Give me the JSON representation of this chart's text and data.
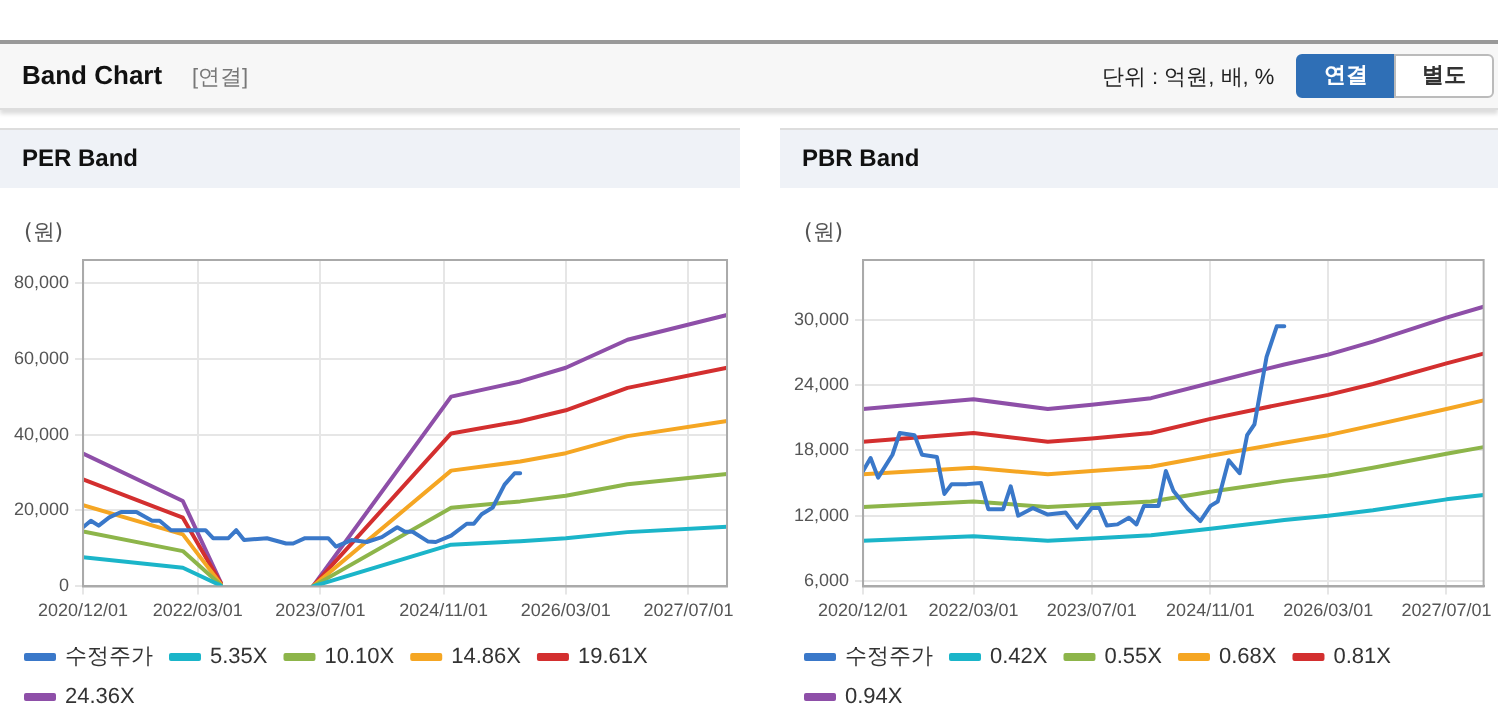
{
  "chart_data": [
    {
      "type": "other",
      "title": "Band Chart",
      "annotations": [
        "[연결]",
        "단위 : 억원, 배, %",
        "연결",
        "별도"
      ]
    },
    {
      "type": "line",
      "title": "PER Band",
      "ylabel": "(원)",
      "x": [
        "2020-12-01",
        "2022-01-01",
        "2022-06-01",
        "2023-01-01",
        "2023-06-01",
        "2024-12-01",
        "2025-09-01",
        "2026-03-01",
        "2026-11-01",
        "2027-12-01"
      ],
      "series": [
        {
          "name": "수정주가",
          "color": "#3a78c9",
          "x": [
            "2020-12-01",
            "2021-01-01",
            "2021-02-01",
            "2021-03-15",
            "2021-05-01",
            "2021-07-01",
            "2021-09-01",
            "2021-10-01",
            "2021-11-15",
            "2022-04-01",
            "2022-05-01",
            "2022-07-01",
            "2022-08-01",
            "2022-09-01",
            "2022-12-01",
            "2023-02-15",
            "2023-03-15",
            "2023-05-01",
            "2023-08-01",
            "2023-09-01",
            "2023-11-01",
            "2024-01-01",
            "2024-03-01",
            "2024-05-01",
            "2024-06-01",
            "2024-07-01",
            "2024-09-01",
            "2024-10-01",
            "2024-12-01",
            "2025-02-01",
            "2025-03-01",
            "2025-04-01",
            "2025-05-15",
            "2025-07-01",
            "2025-08-10",
            "2025-09-01"
          ],
          "values": [
            15600,
            17300,
            16000,
            18200,
            19600,
            19600,
            17300,
            17300,
            14800,
            14800,
            12700,
            12700,
            14800,
            12200,
            12700,
            11300,
            11300,
            12700,
            12700,
            10500,
            12200,
            11700,
            13000,
            15600,
            14400,
            14400,
            11800,
            11700,
            13400,
            16500,
            16500,
            19000,
            20800,
            26800,
            29800,
            29800
          ]
        },
        {
          "name": "5.35X",
          "color": "#1bb5c9",
          "values": [
            7700,
            4900,
            200,
            null,
            0,
            11000,
            11900,
            12700,
            14300,
            15700
          ]
        },
        {
          "name": "10.10X",
          "color": "#8db54a",
          "values": [
            14500,
            9300,
            400,
            null,
            0,
            20700,
            22400,
            23900,
            26900,
            29600
          ]
        },
        {
          "name": "14.86X",
          "color": "#f5a623",
          "values": [
            21400,
            13700,
            600,
            null,
            0,
            30500,
            32900,
            35100,
            39600,
            43600
          ]
        },
        {
          "name": "19.61X",
          "color": "#d32f2f",
          "values": [
            28200,
            18100,
            800,
            null,
            0,
            40300,
            43500,
            46400,
            52300,
            57600
          ]
        },
        {
          "name": "24.36X",
          "color": "#8e4fa8",
          "values": [
            35000,
            22500,
            1000,
            null,
            0,
            50000,
            54000,
            57600,
            65000,
            71500
          ]
        }
      ],
      "xlim": [
        "2020-12-01",
        "2027-12-01"
      ],
      "xticks": [
        {
          "value": "2020-12-01",
          "label": "2020/12/01"
        },
        {
          "value": "2022-03-01",
          "label": "2022/03/01"
        },
        {
          "value": "2023-07-01",
          "label": "2023/07/01"
        },
        {
          "value": "2024-11-01",
          "label": "2024/11/01"
        },
        {
          "value": "2026-03-01",
          "label": "2026/03/01"
        },
        {
          "value": "2027-07-01",
          "label": "2027/07/01"
        }
      ],
      "ylim": [
        0,
        86000
      ],
      "yticks": [
        {
          "value": 0,
          "label": "0"
        },
        {
          "value": 20000,
          "label": "20,000"
        },
        {
          "value": 40000,
          "label": "40,000"
        },
        {
          "value": 60000,
          "label": "60,000"
        },
        {
          "value": 80000,
          "label": "80,000"
        }
      ],
      "grid": true,
      "legend": "bottom",
      "marker": "none",
      "line_style": "solid"
    },
    {
      "type": "line",
      "title": "PBR Band",
      "ylabel": "(원)",
      "x": [
        "2020-12-01",
        "2022-03-01",
        "2023-01-01",
        "2023-07-01",
        "2024-03-01",
        "2024-11-01",
        "2025-09-01",
        "2026-03-01",
        "2026-09-01",
        "2027-07-01",
        "2027-12-01"
      ],
      "series": [
        {
          "name": "수정주가",
          "color": "#3a78c9",
          "x": [
            "2020-12-01",
            "2021-01-01",
            "2021-02-01",
            "2021-04-01",
            "2021-05-01",
            "2021-07-01",
            "2021-08-01",
            "2021-10-01",
            "2021-11-01",
            "2021-12-01",
            "2022-02-01",
            "2022-04-01",
            "2022-05-01",
            "2022-07-01",
            "2022-08-01",
            "2022-09-01",
            "2022-11-01",
            "2023-01-01",
            "2023-03-15",
            "2023-05-01",
            "2023-07-01",
            "2023-08-01",
            "2023-09-01",
            "2023-10-15",
            "2023-12-01",
            "2024-01-01",
            "2024-02-01",
            "2024-04-01",
            "2024-05-01",
            "2024-06-01",
            "2024-08-01",
            "2024-09-20",
            "2024-11-01",
            "2024-12-01",
            "2025-01-15",
            "2025-03-01",
            "2025-04-01",
            "2025-05-01",
            "2025-06-20",
            "2025-08-01",
            "2025-09-01"
          ],
          "values": [
            16100,
            17300,
            15500,
            17600,
            19600,
            19400,
            17600,
            17400,
            14000,
            14900,
            14900,
            15000,
            12600,
            12600,
            14700,
            12000,
            12700,
            12100,
            12300,
            10900,
            12700,
            12700,
            11100,
            11200,
            11800,
            11200,
            12900,
            12900,
            16100,
            14300,
            12600,
            11500,
            12900,
            13300,
            17100,
            15900,
            19400,
            20400,
            26600,
            29400,
            29400
          ]
        },
        {
          "name": "0.42X",
          "color": "#1bb5c9",
          "values": [
            9700,
            10100,
            9700,
            9900,
            10200,
            10800,
            11600,
            12000,
            12500,
            13500,
            13900
          ]
        },
        {
          "name": "0.55X",
          "color": "#8db54a",
          "values": [
            12800,
            13300,
            12800,
            13000,
            13300,
            14200,
            15200,
            15700,
            16400,
            17700,
            18300
          ]
        },
        {
          "name": "0.68X",
          "color": "#f5a623",
          "values": [
            15800,
            16400,
            15800,
            16100,
            16500,
            17500,
            18700,
            19400,
            20300,
            21800,
            22600
          ]
        },
        {
          "name": "0.81X",
          "color": "#d32f2f",
          "values": [
            18800,
            19600,
            18800,
            19100,
            19600,
            20900,
            22300,
            23100,
            24100,
            26000,
            26900
          ]
        },
        {
          "name": "0.94X",
          "color": "#8e4fa8",
          "values": [
            21800,
            22700,
            21800,
            22200,
            22800,
            24200,
            25900,
            26800,
            28000,
            30200,
            31200
          ]
        }
      ],
      "xlim": [
        "2020-12-01",
        "2027-12-01"
      ],
      "xticks": [
        {
          "value": "2020-12-01",
          "label": "2020/12/01"
        },
        {
          "value": "2022-03-01",
          "label": "2022/03/01"
        },
        {
          "value": "2023-07-01",
          "label": "2023/07/01"
        },
        {
          "value": "2024-11-01",
          "label": "2024/11/01"
        },
        {
          "value": "2026-03-01",
          "label": "2026/03/01"
        },
        {
          "value": "2027-07-01",
          "label": "2027/07/01"
        }
      ],
      "ylim": [
        5500,
        35500
      ],
      "yticks": [
        {
          "value": 6000,
          "label": "6,000"
        },
        {
          "value": 12000,
          "label": "12,000"
        },
        {
          "value": 18000,
          "label": "18,000"
        },
        {
          "value": 24000,
          "label": "24,000"
        },
        {
          "value": 30000,
          "label": "30,000"
        }
      ],
      "grid": true,
      "legend": "bottom",
      "marker": "none",
      "line_style": "solid"
    }
  ]
}
